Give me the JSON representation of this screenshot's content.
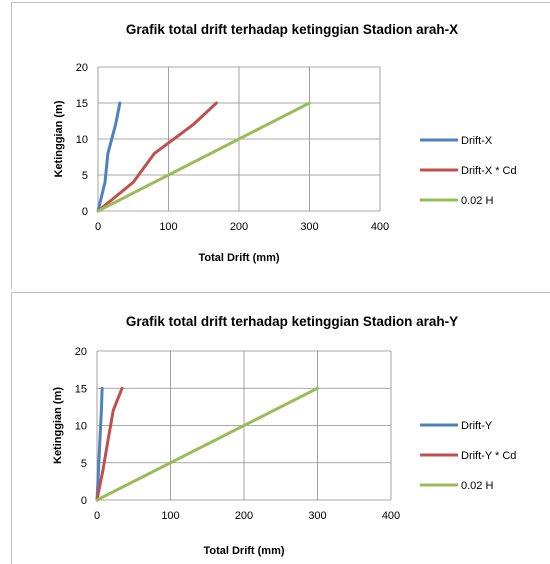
{
  "chart_data": [
    {
      "type": "line",
      "title": "Grafik total drift terhadap ketinggian Stadion arah-X",
      "xlabel": "Total Drift (mm)",
      "ylabel": "Ketinggian (m)",
      "xlim": [
        0,
        400
      ],
      "ylim": [
        0,
        20
      ],
      "xticks": [
        "0",
        "100",
        "200",
        "300",
        "400"
      ],
      "yticks": [
        "0",
        "5",
        "10",
        "15",
        "20"
      ],
      "grid": true,
      "legend_position": "right",
      "series": [
        {
          "name": "Drift-X",
          "color": "#4f81bd",
          "points": [
            [
              0,
              0
            ],
            [
              5,
              2
            ],
            [
              10,
              4
            ],
            [
              14,
              8
            ],
            [
              25,
              12
            ],
            [
              31,
              15
            ]
          ]
        },
        {
          "name": "Drift-X * Cd",
          "color": "#c0504d",
          "points": [
            [
              0,
              0
            ],
            [
              25,
              2
            ],
            [
              50,
              4
            ],
            [
              80,
              8
            ],
            [
              135,
              12
            ],
            [
              168,
              15
            ]
          ]
        },
        {
          "name": "0.02 H",
          "color": "#9bbb59",
          "points": [
            [
              0,
              0
            ],
            [
              300,
              15
            ]
          ]
        }
      ]
    },
    {
      "type": "line",
      "title": "Grafik total drift terhadap ketinggian Stadion arah-Y",
      "xlabel": "Total Drift (mm)",
      "ylabel": "Ketinggian (m)",
      "xlim": [
        0,
        400
      ],
      "ylim": [
        0,
        20
      ],
      "xticks": [
        "0",
        "100",
        "200",
        "300",
        "400"
      ],
      "yticks": [
        "0",
        "5",
        "10",
        "15",
        "20"
      ],
      "grid": true,
      "legend_position": "right",
      "series": [
        {
          "name": "Drift-Y",
          "color": "#4f81bd",
          "points": [
            [
              0,
              0
            ],
            [
              2,
              4
            ],
            [
              4,
              8
            ],
            [
              6,
              12
            ],
            [
              7,
              15
            ]
          ]
        },
        {
          "name": "Drift-Y * Cd",
          "color": "#c0504d",
          "points": [
            [
              0,
              0
            ],
            [
              8,
              4
            ],
            [
              15,
              8
            ],
            [
              22,
              12
            ],
            [
              34,
              15
            ]
          ]
        },
        {
          "name": "0.02 H",
          "color": "#9bbb59",
          "points": [
            [
              0,
              0
            ],
            [
              300,
              15
            ]
          ]
        }
      ]
    }
  ]
}
